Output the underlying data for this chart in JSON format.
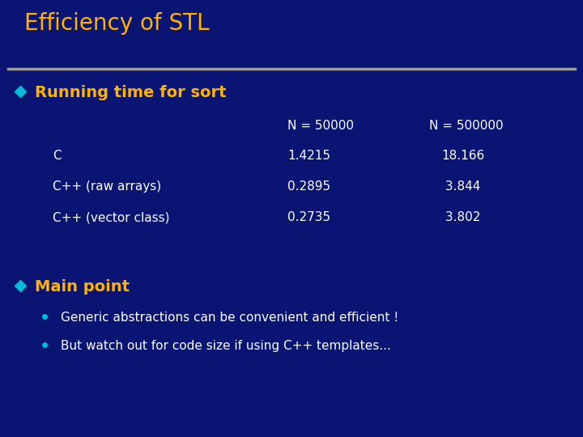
{
  "title": "Efficiency of STL",
  "title_color": "#FFB300",
  "background_color": "#0a1472",
  "separator_color": "#A0A0A0",
  "heading1": "Running time for sort",
  "heading1_color": "#FFB300",
  "diamond1_color": "#00BCD4",
  "col_header1": "N = 50000",
  "col_header2": "N = 500000",
  "rows": [
    {
      "label": "C",
      "v1": "1.4215",
      "v2": "18.166"
    },
    {
      "label": "C++ (raw arrays)",
      "v1": "0.2895",
      "v2": " 3.844"
    },
    {
      "label": "C++ (vector class)",
      "v1": "0.2735",
      "v2": " 3.802"
    }
  ],
  "table_color": "#FFFFFF",
  "heading2": "Main point",
  "heading2_color": "#FFB300",
  "diamond2_color": "#00BCD4",
  "bullet_color": "#00BCD4",
  "bullets": [
    "Generic abstractions can be convenient and efficient !",
    "But watch out for code size if using C++ templates..."
  ],
  "bullet_text_color": "#FFFFFF",
  "title_fontsize": 20,
  "heading_fontsize": 14,
  "body_fontsize": 11
}
